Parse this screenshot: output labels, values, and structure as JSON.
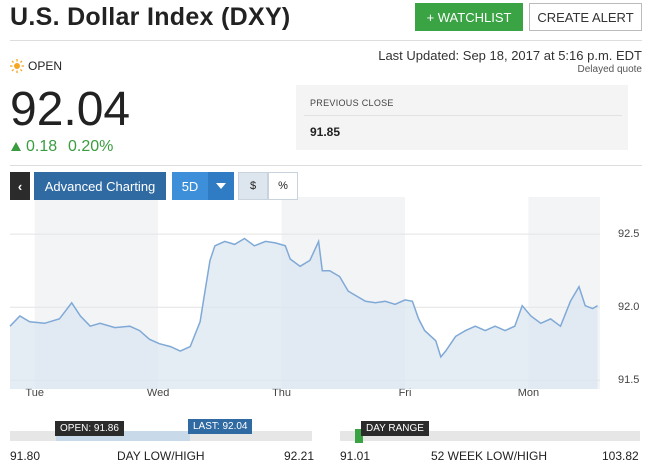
{
  "header": {
    "title": "U.S. Dollar Index (DXY)",
    "watchlist_button": "+ WATCHLIST",
    "alert_button": "CREATE ALERT"
  },
  "quote": {
    "status": "OPEN",
    "last_updated": "Last Updated: Sep 18, 2017 at 5:16 p.m. EDT",
    "delayed": "Delayed quote",
    "price": "92.04",
    "change": "0.18",
    "change_percent": "0.20%",
    "previous_close_label": "PREVIOUS CLOSE",
    "previous_close": "91.85"
  },
  "toolbar": {
    "advanced_charting": "Advanced Charting",
    "range": "5D",
    "dollar": "$",
    "percent": "%"
  },
  "chart_data": {
    "type": "line",
    "color": "#7fa9d6",
    "fill": "#dbe6f0",
    "grid": true,
    "x": [
      -0.2,
      -0.12,
      -0.04,
      0.08,
      0.2,
      0.3,
      0.37,
      0.45,
      0.53,
      0.65,
      0.77,
      0.85,
      0.93,
      1.01,
      1.1,
      1.18,
      1.26,
      1.34,
      1.38,
      1.42,
      1.46,
      1.54,
      1.62,
      1.7,
      1.78,
      1.87,
      1.95,
      2.03,
      2.07,
      2.15,
      2.23,
      2.3,
      2.33,
      2.39,
      2.47,
      2.54,
      2.6,
      2.68,
      2.76,
      2.84,
      2.92,
      3.0,
      3.06,
      3.11,
      3.16,
      3.25,
      3.29,
      3.33,
      3.41,
      3.49,
      3.57,
      3.65,
      3.73,
      3.81,
      3.89,
      3.95,
      4.02,
      4.1,
      4.18,
      4.26,
      4.34,
      4.41,
      4.46,
      4.52,
      4.56
    ],
    "values": [
      91.87,
      91.94,
      91.9,
      91.89,
      91.92,
      92.03,
      91.94,
      91.87,
      91.89,
      91.86,
      91.87,
      91.84,
      91.78,
      91.75,
      91.73,
      91.7,
      91.73,
      91.9,
      92.11,
      92.32,
      92.42,
      92.45,
      92.43,
      92.47,
      92.42,
      92.45,
      92.44,
      92.42,
      92.33,
      92.28,
      92.32,
      92.45,
      92.25,
      92.25,
      92.21,
      92.11,
      92.08,
      92.04,
      92.03,
      92.04,
      92.02,
      92.05,
      92.04,
      91.92,
      91.84,
      91.77,
      91.66,
      91.7,
      91.8,
      91.84,
      91.87,
      91.84,
      91.87,
      91.84,
      91.87,
      92.01,
      91.94,
      91.89,
      91.92,
      91.87,
      92.04,
      92.14,
      92.01,
      91.99,
      92.01
    ],
    "xlim": [
      -0.2,
      4.58
    ],
    "xticks": [
      {
        "value": 0,
        "label": "Tue"
      },
      {
        "value": 1,
        "label": "Wed"
      },
      {
        "value": 2,
        "label": "Thu"
      },
      {
        "value": 3,
        "label": "Fri"
      },
      {
        "value": 4,
        "label": "Mon"
      }
    ],
    "ylim": [
      91.44,
      92.72
    ],
    "yticks": [
      92.5,
      {
        "value": 92,
        "label": "92.0"
      },
      91.5
    ]
  },
  "ranges": {
    "day": {
      "open": "OPEN: 91.86",
      "last": "LAST: 92.04",
      "low": "91.80",
      "label": "DAY LOW/HIGH",
      "high": "92.21"
    },
    "week52": {
      "marker": "DAY RANGE",
      "low": "91.01",
      "label": "52 WEEK LOW/HIGH",
      "high": "103.82"
    }
  }
}
